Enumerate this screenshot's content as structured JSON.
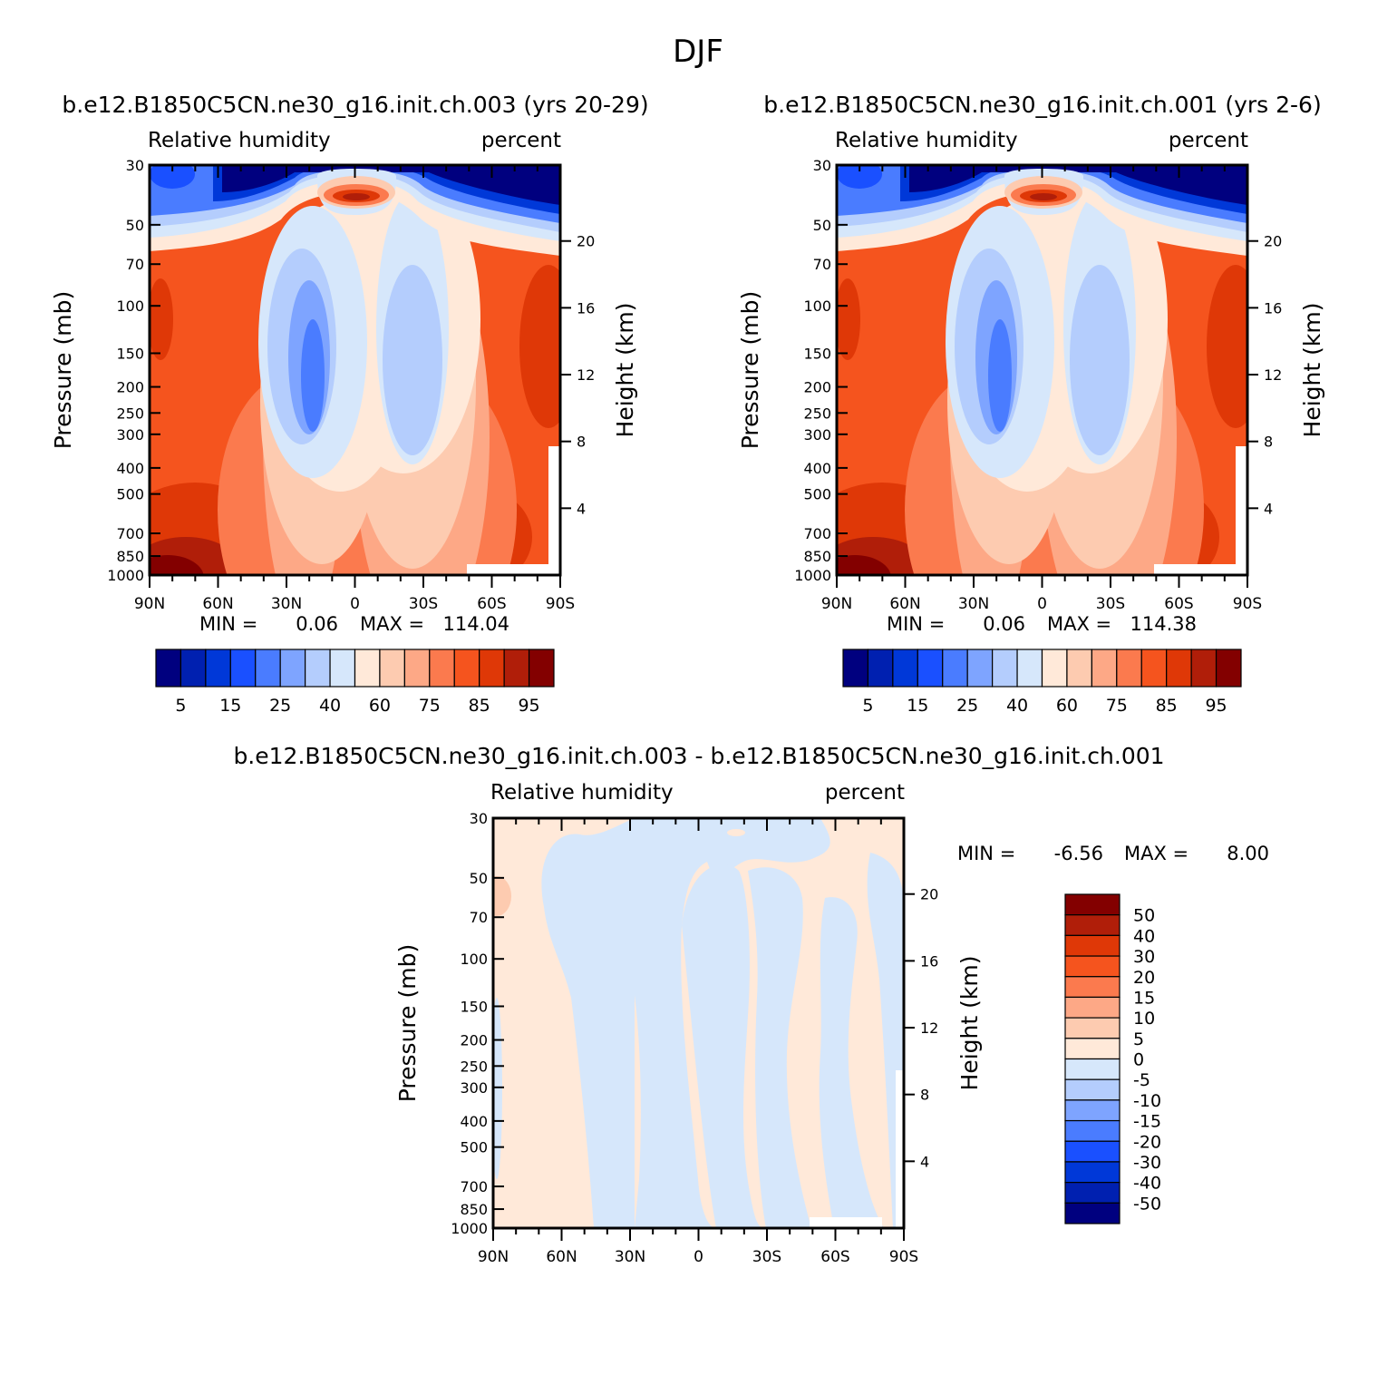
{
  "figure_title": "DJF",
  "colors": {
    "rh_levels": [
      "#00007f",
      "#0020b0",
      "#0038d8",
      "#1a50ff",
      "#4a7cff",
      "#7ea4ff",
      "#b4cdfd",
      "#d6e7fb",
      "#ffe9d9",
      "#fdcbb0",
      "#fda886",
      "#fb7a4e",
      "#f5541e",
      "#df3807",
      "#b01e09",
      "#830000"
    ],
    "diff_levels": [
      "#00007f",
      "#0020b0",
      "#0038d8",
      "#1a50ff",
      "#4a7cff",
      "#7ea4ff",
      "#b4cdfd",
      "#d6e7fb",
      "#ffe9d9",
      "#fdcbb0",
      "#fda886",
      "#fb7a4e",
      "#f5541e",
      "#df3807",
      "#b01e09",
      "#830000"
    ]
  },
  "chart_data": [
    {
      "type": "heatmap",
      "panel_title": "b.e12.B1850C5CN.ne30_g16.init.ch.003 (yrs 20-29)",
      "left_label": "Relative humidity",
      "right_label": "percent",
      "ylabel": "Pressure (mb)",
      "ylabel_right": "Height (km)",
      "x_ticklabels": [
        "90N",
        "60N",
        "30N",
        "0",
        "30S",
        "60S",
        "90S"
      ],
      "y_ticklabels": [
        "30",
        "50",
        "70",
        "100",
        "150",
        "200",
        "250",
        "300",
        "400",
        "500",
        "700",
        "850",
        "1000"
      ],
      "y_ticks_right": [
        "20",
        "16",
        "12",
        "8",
        "4"
      ],
      "min_text": "MIN =",
      "min": "0.06",
      "max_text": "MAX =",
      "max": "114.04",
      "colorbar_labels": [
        "5",
        "15",
        "25",
        "40",
        "60",
        "75",
        "85",
        "95"
      ]
    },
    {
      "type": "heatmap",
      "panel_title": "b.e12.B1850C5CN.ne30_g16.init.ch.001 (yrs 2-6)",
      "left_label": "Relative humidity",
      "right_label": "percent",
      "ylabel": "Pressure (mb)",
      "ylabel_right": "Height (km)",
      "x_ticklabels": [
        "90N",
        "60N",
        "30N",
        "0",
        "30S",
        "60S",
        "90S"
      ],
      "y_ticklabels": [
        "30",
        "50",
        "70",
        "100",
        "150",
        "200",
        "250",
        "300",
        "400",
        "500",
        "700",
        "850",
        "1000"
      ],
      "y_ticks_right": [
        "20",
        "16",
        "12",
        "8",
        "4"
      ],
      "min_text": "MIN =",
      "min": "0.06",
      "max_text": "MAX =",
      "max": "114.38",
      "colorbar_labels": [
        "5",
        "15",
        "25",
        "40",
        "60",
        "75",
        "85",
        "95"
      ]
    },
    {
      "type": "heatmap",
      "panel_title": "b.e12.B1850C5CN.ne30_g16.init.ch.003 - b.e12.B1850C5CN.ne30_g16.init.ch.001",
      "left_label": "Relative humidity",
      "right_label": "percent",
      "ylabel": "Pressure (mb)",
      "ylabel_right": "Height (km)",
      "x_ticklabels": [
        "90N",
        "60N",
        "30N",
        "0",
        "30S",
        "60S",
        "90S"
      ],
      "y_ticklabels": [
        "30",
        "50",
        "70",
        "100",
        "150",
        "200",
        "250",
        "300",
        "400",
        "500",
        "700",
        "850",
        "1000"
      ],
      "y_ticks_right": [
        "20",
        "16",
        "12",
        "8",
        "4"
      ],
      "min_text": "MIN =",
      "min": "-6.56",
      "max_text": "MAX =",
      "max": "8.00",
      "colorbar_labels": [
        "50",
        "40",
        "30",
        "20",
        "15",
        "10",
        "5",
        "0",
        "-5",
        "-10",
        "-15",
        "-20",
        "-30",
        "-40",
        "-50"
      ]
    }
  ]
}
